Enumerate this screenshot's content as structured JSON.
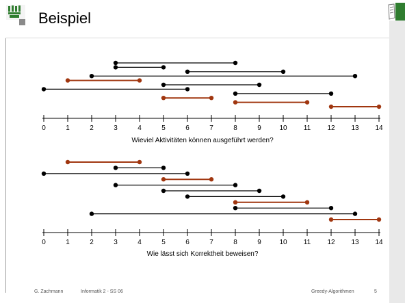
{
  "slide": {
    "title": "Beispiel",
    "logo_icon": "university-seal-icon",
    "corner_icon": "notepad-icon"
  },
  "colors": {
    "black_interval": "#000000",
    "selected_interval": "#a0360f",
    "panel": "#e9e9e9"
  },
  "diagram_top": {
    "caption": "Wieviel Aktivitäten können ausgeführt werden?",
    "axis": {
      "min": 0,
      "max": 14,
      "ticks": [
        0,
        1,
        2,
        3,
        4,
        5,
        6,
        7,
        8,
        9,
        10,
        11,
        12,
        13,
        14
      ]
    },
    "intervals": [
      {
        "start": 3,
        "end": 8,
        "selected": false
      },
      {
        "start": 3,
        "end": 5,
        "selected": false
      },
      {
        "start": 6,
        "end": 10,
        "selected": false
      },
      {
        "start": 2,
        "end": 13,
        "selected": false
      },
      {
        "start": 1,
        "end": 4,
        "selected": true
      },
      {
        "start": 5,
        "end": 9,
        "selected": false
      },
      {
        "start": 0,
        "end": 6,
        "selected": false
      },
      {
        "start": 8,
        "end": 12,
        "selected": false
      },
      {
        "start": 5,
        "end": 7,
        "selected": true
      },
      {
        "start": 8,
        "end": 11,
        "selected": true
      },
      {
        "start": 12,
        "end": 14,
        "selected": true
      }
    ]
  },
  "diagram_bottom": {
    "caption": "Wie lässt sich Korrektheit beweisen?",
    "axis": {
      "min": 0,
      "max": 14,
      "ticks": [
        0,
        1,
        2,
        3,
        4,
        5,
        6,
        7,
        8,
        9,
        10,
        11,
        12,
        13,
        14
      ]
    },
    "intervals": [
      {
        "start": 1,
        "end": 4,
        "selected": true
      },
      {
        "start": 3,
        "end": 5,
        "selected": false
      },
      {
        "start": 0,
        "end": 6,
        "selected": false
      },
      {
        "start": 5,
        "end": 7,
        "selected": true
      },
      {
        "start": 3,
        "end": 8,
        "selected": false
      },
      {
        "start": 5,
        "end": 9,
        "selected": false
      },
      {
        "start": 6,
        "end": 10,
        "selected": false
      },
      {
        "start": 8,
        "end": 11,
        "selected": true
      },
      {
        "start": 8,
        "end": 12,
        "selected": false
      },
      {
        "start": 2,
        "end": 13,
        "selected": false
      },
      {
        "start": 12,
        "end": 14,
        "selected": true
      }
    ]
  },
  "footer": {
    "author": "G. Zachmann",
    "course": "Informatik 2 - SS 06",
    "topic": "Greedy-Algorithmen",
    "page": "5"
  }
}
